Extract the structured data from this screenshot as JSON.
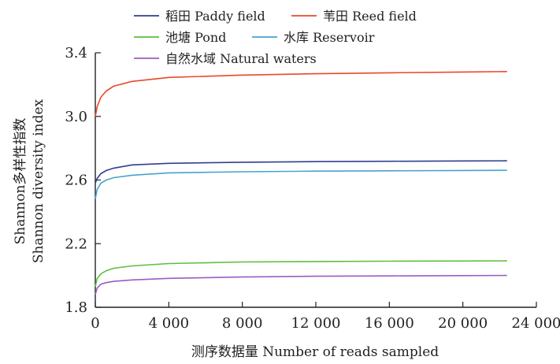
{
  "chart_data": {
    "type": "line",
    "title": "",
    "xlabel": "测序数据量 Number of reads sampled",
    "ylabel_line1": "Shannon多样性指数",
    "ylabel_line2": "Shannon diversity index",
    "xlim": [
      0,
      24000
    ],
    "ylim": [
      1.8,
      3.4
    ],
    "x_ticks": [
      0,
      4000,
      8000,
      12000,
      16000,
      20000,
      24000
    ],
    "x_tick_labels": [
      "0",
      "4 000",
      "8 000",
      "12 000",
      "16 000",
      "20 000",
      "24 000"
    ],
    "y_ticks": [
      1.8,
      2.2,
      2.6,
      3.0,
      3.4
    ],
    "y_tick_labels": [
      "1.8",
      "2.2",
      "2.6",
      "3.0",
      "3.4"
    ],
    "grid": false,
    "legend_position": "top",
    "series": [
      {
        "name": "稻田 Paddy field",
        "color": "#2f3f8f",
        "x": [
          0,
          100,
          300,
          600,
          1000,
          2000,
          4000,
          8000,
          12000,
          16000,
          20000,
          22400
        ],
        "y": [
          2.58,
          2.61,
          2.64,
          2.66,
          2.675,
          2.695,
          2.705,
          2.712,
          2.716,
          2.718,
          2.72,
          2.721
        ]
      },
      {
        "name": "苇田 Reed field",
        "color": "#e8492a",
        "x": [
          0,
          100,
          300,
          600,
          1000,
          2000,
          4000,
          8000,
          12000,
          16000,
          20000,
          22400
        ],
        "y": [
          3.0,
          3.06,
          3.12,
          3.16,
          3.19,
          3.22,
          3.245,
          3.26,
          3.268,
          3.274,
          3.279,
          3.282
        ]
      },
      {
        "name": "池塘 Pond",
        "color": "#5cbf3d",
        "x": [
          0,
          100,
          300,
          600,
          1000,
          2000,
          4000,
          8000,
          12000,
          16000,
          20000,
          22400
        ],
        "y": [
          1.93,
          1.98,
          2.01,
          2.03,
          2.045,
          2.06,
          2.075,
          2.085,
          2.088,
          2.09,
          2.091,
          2.092
        ]
      },
      {
        "name": "水库 Reservoir",
        "color": "#48a3cc",
        "x": [
          0,
          100,
          300,
          600,
          1000,
          2000,
          4000,
          8000,
          12000,
          16000,
          20000,
          22400
        ],
        "y": [
          2.48,
          2.54,
          2.58,
          2.6,
          2.615,
          2.63,
          2.645,
          2.652,
          2.656,
          2.658,
          2.66,
          2.661
        ]
      },
      {
        "name": "自然水域 Natural waters",
        "color": "#9b5cc2",
        "x": [
          0,
          100,
          300,
          600,
          1000,
          2000,
          4000,
          8000,
          12000,
          16000,
          20000,
          22400
        ],
        "y": [
          1.88,
          1.92,
          1.945,
          1.955,
          1.963,
          1.972,
          1.982,
          1.99,
          1.995,
          1.997,
          1.999,
          2.0
        ]
      }
    ]
  }
}
